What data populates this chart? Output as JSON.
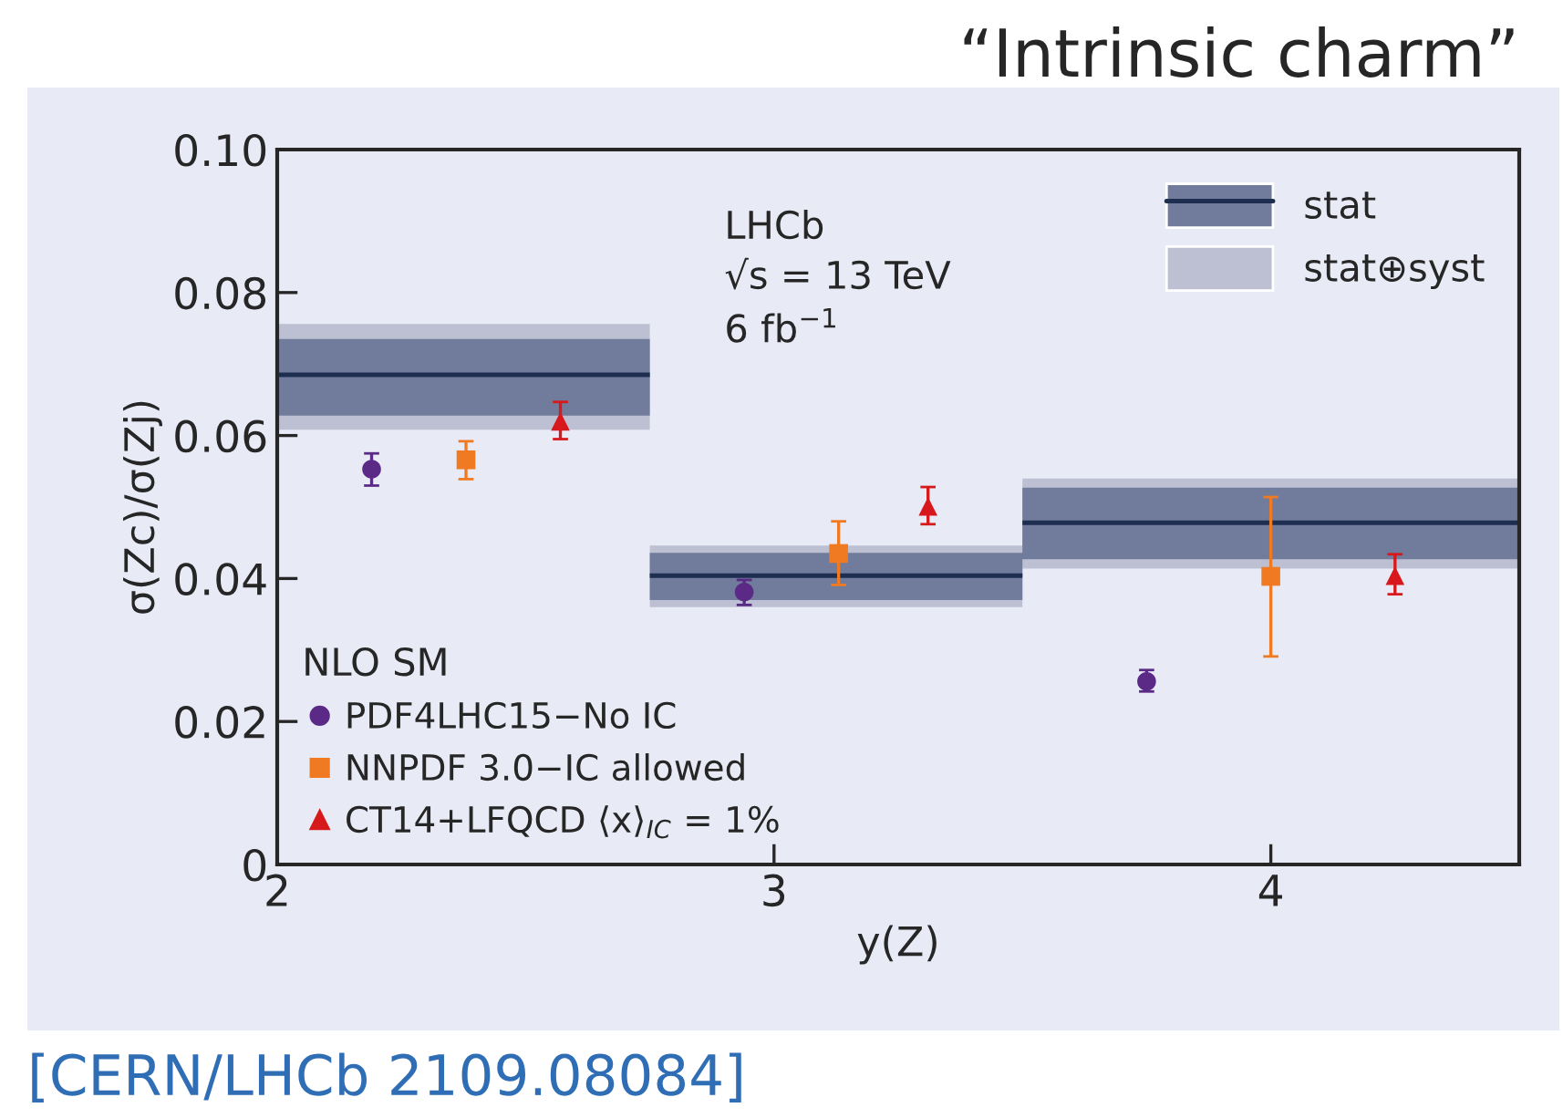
{
  "chart_data": {
    "type": "scatter",
    "title": "“Intrinsic charm”",
    "xlabel": "y(Z)",
    "ylabel": "σ(Zc)/σ(Zj)",
    "legend_title": "NLO SM",
    "annotations": [
      "LHCb",
      "√s = 13 TeV",
      "6 fb$^{−1}$",
      "[CERN/LHCb 2109.08084]"
    ],
    "series": [
      {
        "name": "stat⊕syst",
        "type": "step",
        "color": "#bcc0d2",
        "x": [
          2,
          2.75,
          3.5,
          4.5
        ],
        "values": [
          null,
          null,
          null,
          null
        ],
        "lower": [
          0.0608,
          0.036,
          0.0414,
          0.0414
        ],
        "upper": [
          0.0756,
          0.0446,
          0.054,
          0.054
        ]
      },
      {
        "name": "stat",
        "type": "step",
        "color": "#717b9b",
        "x": [
          2,
          2.75,
          3.5,
          4.5
        ],
        "values": [
          null,
          null,
          null,
          null
        ],
        "lower": [
          0.0628,
          0.037,
          0.0427,
          0.0427
        ],
        "upper": [
          0.0735,
          0.0436,
          0.0527,
          0.0527
        ]
      },
      {
        "type": "step",
        "color": "#1e2e50",
        "x": [
          2,
          2.75,
          3.5,
          4.5
        ],
        "values": [
          0.0685,
          0.0404,
          0.0478,
          0.0478
        ]
      },
      {
        "name": "PDF4LHC15−No IC",
        "marker": "circle",
        "color": "#5b2a86",
        "x": [
          2.19,
          2.94,
          3.75
        ],
        "values": [
          0.0553,
          0.0381,
          0.0256
        ],
        "errors": [
          [
            0.053,
            0.0575
          ],
          [
            0.0363,
            0.0398
          ],
          [
            0.0242,
            0.0272
          ]
        ]
      },
      {
        "name": "NNPDF 3.0−IC allowed",
        "marker": "square",
        "color": "#f07a22",
        "x": [
          2.38,
          3.13,
          4.0
        ],
        "values": [
          0.0566,
          0.0435,
          0.0403
        ],
        "errors": [
          [
            0.0539,
            0.0592
          ],
          [
            0.0391,
            0.048
          ],
          [
            0.0291,
            0.0514
          ]
        ]
      },
      {
        "name": "CT14+LFQCD ⟨x⟩$_{IC}$ = 1%",
        "marker": "triangle",
        "color": "#d7191c",
        "x": [
          2.57,
          3.31,
          4.25
        ],
        "values": [
          0.062,
          0.0501,
          0.0404
        ],
        "errors": [
          [
            0.0595,
            0.0647
          ],
          [
            0.0476,
            0.0528
          ],
          [
            0.0378,
            0.0434
          ]
        ]
      }
    ],
    "xlim": [
      2,
      4.5
    ],
    "xticks": [
      2,
      3,
      4
    ],
    "ylim": [
      0,
      0.1
    ],
    "yticks": [
      0,
      {
        "value": 0.02,
        "label": "0.02"
      },
      {
        "value": 0.04,
        "label": "0.04"
      },
      {
        "value": 0.06,
        "label": "0.06"
      },
      {
        "value": 0.08,
        "label": "0.08"
      },
      {
        "value": 0.1,
        "label": "0.10"
      }
    ],
    "grid": false,
    "legend": "bottom left"
  }
}
